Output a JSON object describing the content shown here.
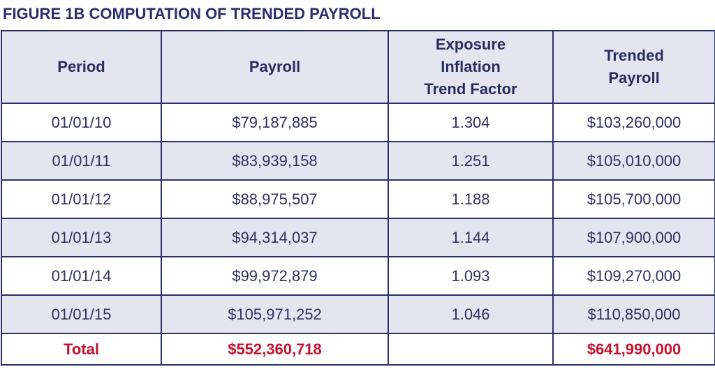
{
  "figure": {
    "title": "FIGURE 1B COMPUTATION OF TRENDED PAYROLL"
  },
  "table": {
    "headers": [
      {
        "lines": [
          "Period"
        ]
      },
      {
        "lines": [
          "Payroll"
        ]
      },
      {
        "lines": [
          "Exposure",
          "Inflation",
          "Trend Factor"
        ]
      },
      {
        "lines": [
          "Trended",
          "Payroll"
        ]
      }
    ],
    "rows": [
      {
        "period": "01/01/10",
        "payroll": "$79,187,885",
        "factor": "1.304",
        "trended": "$103,260,000"
      },
      {
        "period": "01/01/11",
        "payroll": "$83,939,158",
        "factor": "1.251",
        "trended": "$105,010,000"
      },
      {
        "period": "01/01/12",
        "payroll": "$88,975,507",
        "factor": "1.188",
        "trended": "$105,700,000"
      },
      {
        "period": "01/01/13",
        "payroll": "$94,314,037",
        "factor": "1.144",
        "trended": "$107,900,000"
      },
      {
        "period": "01/01/14",
        "payroll": "$99,972,879",
        "factor": "1.093",
        "trended": "$109,270,000"
      },
      {
        "period": "01/01/15",
        "payroll": "$105,971,252",
        "factor": "1.046",
        "trended": "$110,850,000"
      }
    ],
    "total": {
      "label": "Total",
      "payroll": "$552,360,718",
      "factor": "",
      "trended": "$641,990,000"
    }
  },
  "colors": {
    "title_text": "#2b2e6b",
    "border": "#2c2f6a",
    "header_fill": "#e4e5ee",
    "stripe_fill": "#e4e5ee",
    "total_text": "#c8102e"
  }
}
